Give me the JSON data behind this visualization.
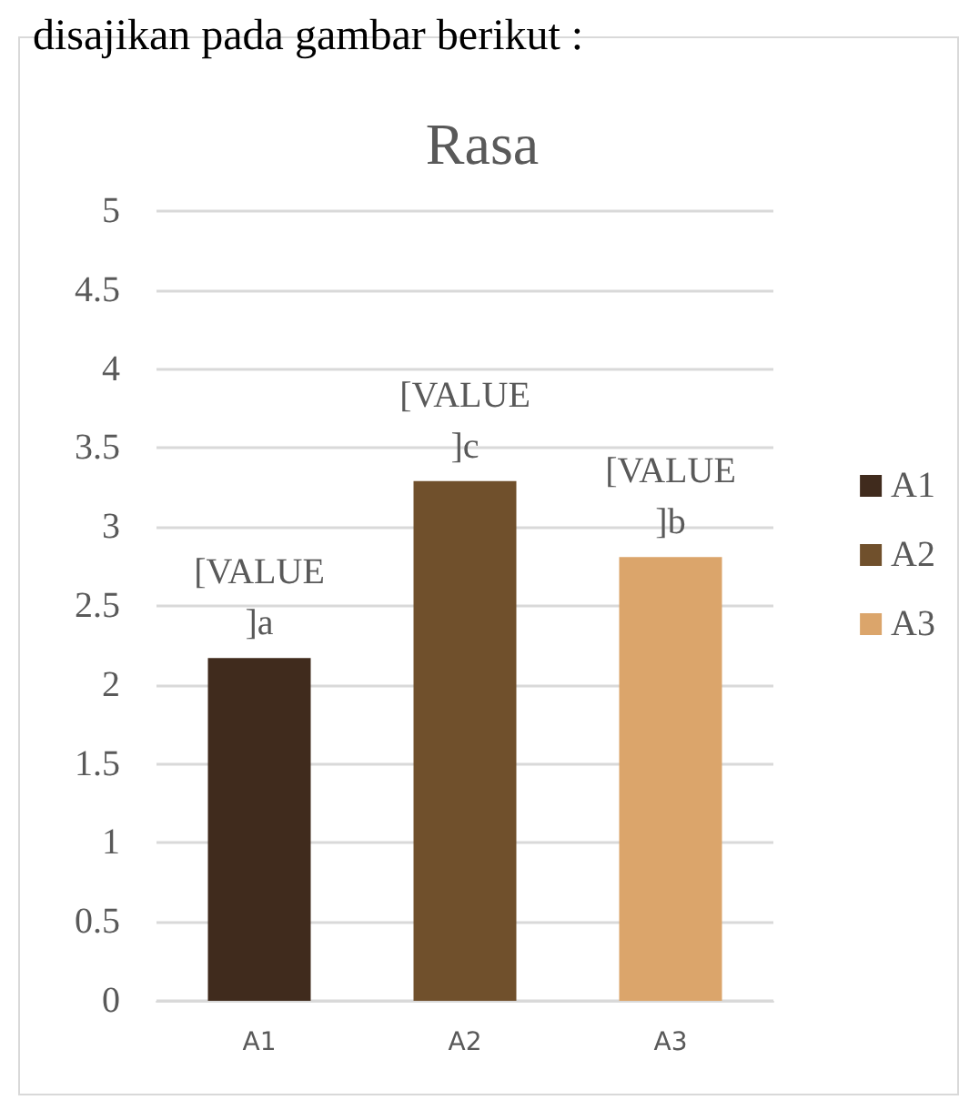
{
  "chart_data": {
    "type": "bar",
    "title": "Rasa",
    "categories": [
      "A1",
      "A2",
      "A3"
    ],
    "series": [
      {
        "name": "A1",
        "color": "#402b1d",
        "values": [
          2.17,
          null,
          null
        ],
        "value_labels": [
          "[VALUE]a",
          null,
          null
        ]
      },
      {
        "name": "A2",
        "color": "#70502c",
        "values": [
          null,
          3.29,
          null
        ],
        "value_labels": [
          null,
          "[VALUE]c",
          null
        ]
      },
      {
        "name": "A3",
        "color": "#dba56b",
        "values": [
          null,
          null,
          2.81
        ],
        "value_labels": [
          null,
          null,
          "[VALUE]b"
        ]
      }
    ],
    "ylim": [
      0,
      5
    ],
    "yticks": [
      0,
      0.5,
      1,
      1.5,
      2,
      2.5,
      3,
      3.5,
      4,
      4.5,
      5
    ],
    "grid": "y",
    "legend": "right",
    "annotations": [
      "disajikan pada gambar berikut :"
    ]
  }
}
